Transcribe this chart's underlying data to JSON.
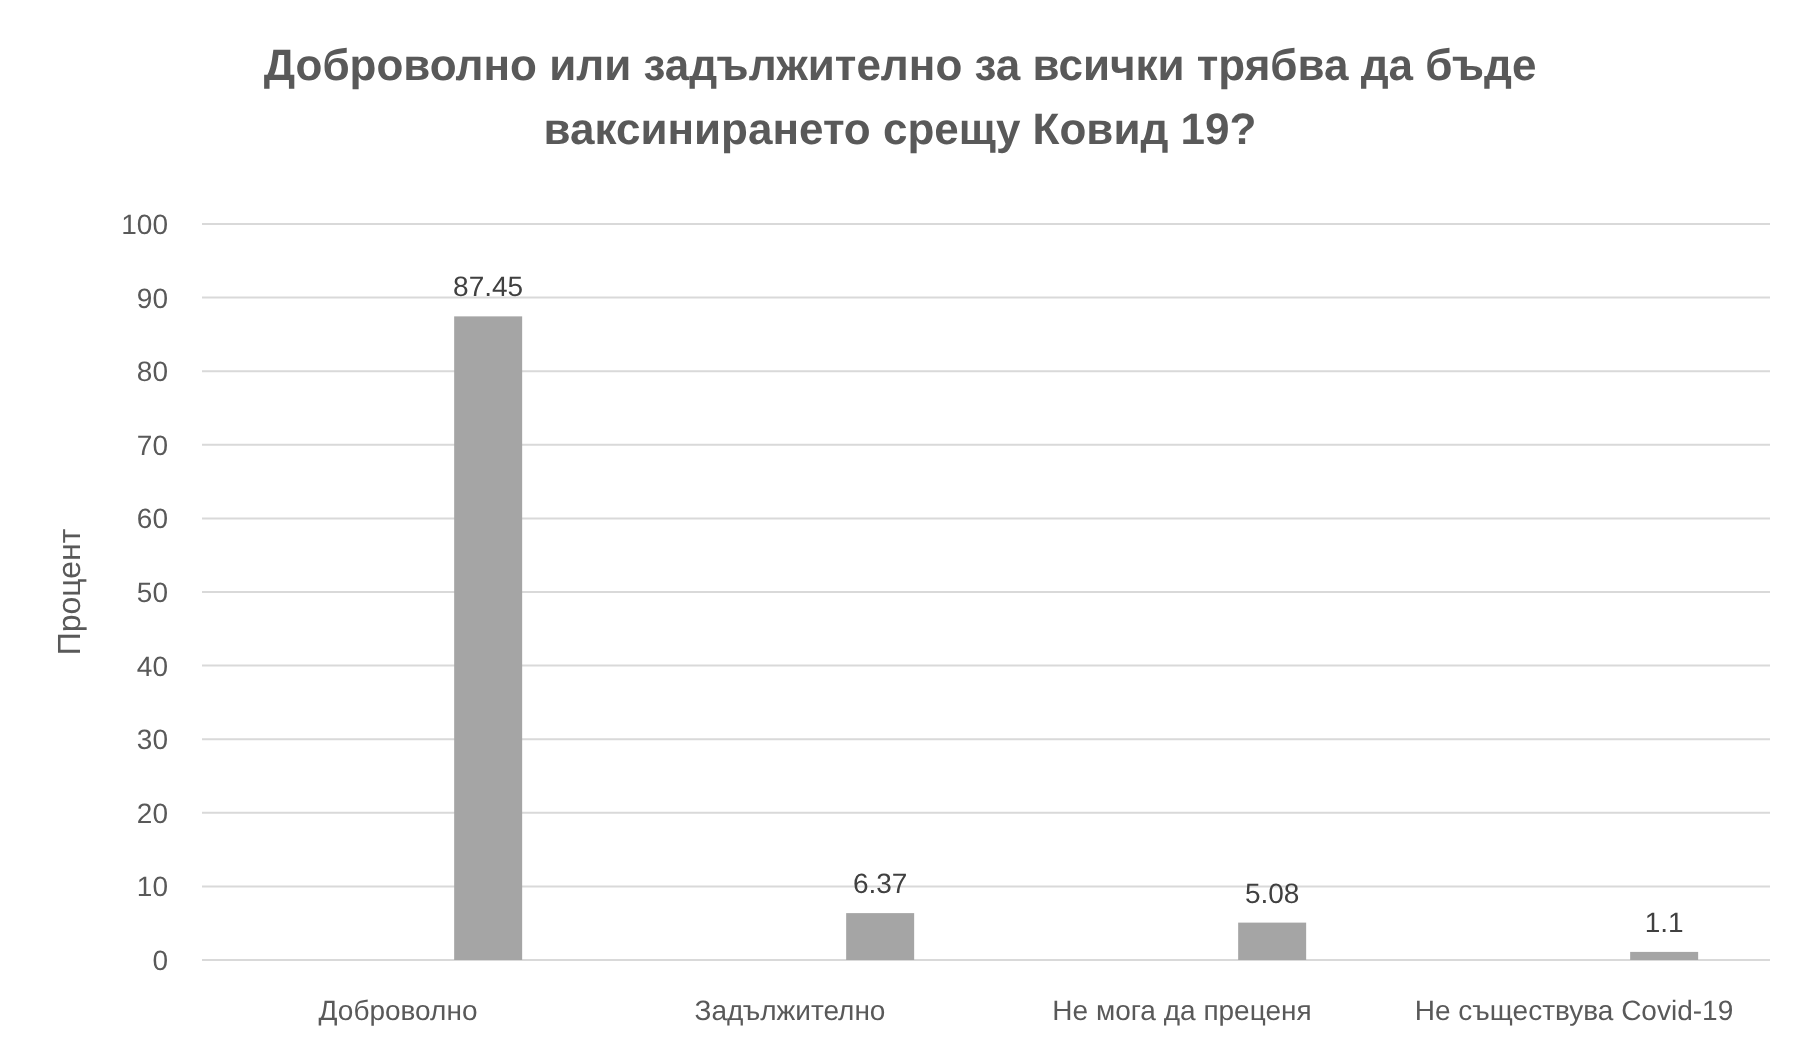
{
  "chart_data": {
    "type": "bar",
    "title": "Доброволно или задължително за всички трябва да бъде ваксинирането срещу Ковид 19?",
    "ylabel": "Процент",
    "categories": [
      "Доброволно",
      "Задължително",
      "Не мога да преценя",
      "Не съществува Covid-19"
    ],
    "series": [
      {
        "color": "#a5a5a5",
        "values": [
          87.45,
          6.37,
          5.08,
          1.1
        ]
      }
    ],
    "ylim": [
      0,
      100
    ],
    "yticks": [
      0,
      10,
      20,
      30,
      40,
      50,
      60,
      70,
      80,
      90,
      100
    ],
    "grid": "y",
    "data_labels": true
  }
}
